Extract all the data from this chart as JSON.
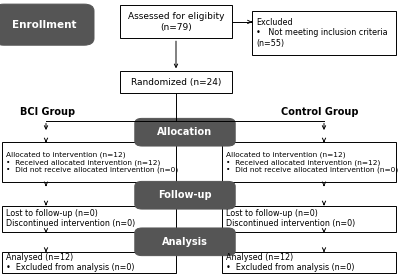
{
  "bg_color": "#ffffff",
  "enrollment_label": "Enrollment",
  "enrollment_box_color": "#555555",
  "enrollment_text_color": "#ffffff",
  "section_box_color": "#555555",
  "section_text_color": "#ffffff",
  "top_box_text": "Assessed for eligibity\n(n=79)",
  "excluded_box_text": "Excluded\n•   Not meeting inclusion criteria\n(n=55)",
  "randomized_box_text": "Randomized (n=24)",
  "bci_group_label": "BCI Group",
  "control_group_label": "Control Group",
  "allocation_label": "Allocation",
  "followup_label": "Follow-up",
  "analysis_label": "Analysis",
  "bci_alloc_text": "Allocated to intervention (n=12)\n•  Received allocated intervention (n=12)\n•  Did not receive allocated intervention (n=0)",
  "ctrl_alloc_text": "Allocated to intervention (n=12)\n•  Received allocated intervention (n=12)\n•  Did not receive allocated intervention (n=0)",
  "bci_followup_text": "Lost to follow-up (n=0)\nDiscontinued intervention (n=0)",
  "ctrl_followup_text": "Lost to follow-up (n=0)\nDiscontinued intervention (n=0)",
  "bci_analysis_text": "Analysed (n=12)\n•  Excluded from analysis (n=0)",
  "ctrl_analysis_text": "Analysed (n=12)\n•  Excluded from analysis (n=0)",
  "line_color": "#000000",
  "box_edge_color": "#000000"
}
